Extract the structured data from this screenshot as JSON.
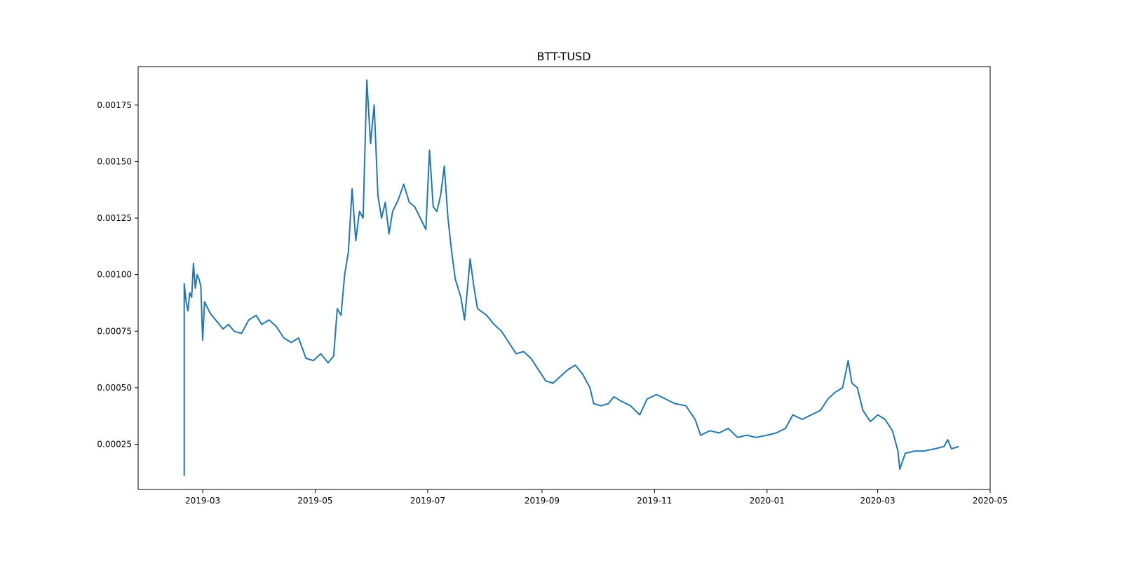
{
  "chart_data": {
    "type": "line",
    "title": "BTT-TUSD",
    "xlabel": "",
    "ylabel": "",
    "x_axis": "date",
    "xlim": [
      "2019-01-25",
      "2020-05-01"
    ],
    "ylim": [
      5e-05,
      0.00192
    ],
    "x_ticks": [
      "2019-03-01",
      "2019-05-01",
      "2019-07-01",
      "2019-09-01",
      "2019-11-01",
      "2020-01-01",
      "2020-03-01",
      "2020-05-01"
    ],
    "x_tick_labels": [
      "2019-03",
      "2019-05",
      "2019-07",
      "2019-09",
      "2019-11",
      "2020-01",
      "2020-03",
      "2020-05"
    ],
    "y_ticks": [
      0.00025,
      0.0005,
      0.00075,
      0.001,
      0.00125,
      0.0015,
      0.00175
    ],
    "y_tick_labels": [
      "0.00025",
      "0.00050",
      "0.00075",
      "0.00100",
      "0.00125",
      "0.00150",
      "0.00175"
    ],
    "grid": false,
    "legend": "none",
    "series": [
      {
        "color": "#1f77b4",
        "points": [
          [
            "2019-02-19",
            0.00011
          ],
          [
            "2019-02-19",
            0.00096
          ],
          [
            "2019-02-20",
            0.00088
          ],
          [
            "2019-02-21",
            0.00084
          ],
          [
            "2019-02-22",
            0.00092
          ],
          [
            "2019-02-23",
            0.0009
          ],
          [
            "2019-02-24",
            0.00105
          ],
          [
            "2019-02-25",
            0.00094
          ],
          [
            "2019-02-26",
            0.001
          ],
          [
            "2019-02-27",
            0.00098
          ],
          [
            "2019-02-28",
            0.00095
          ],
          [
            "2019-03-01",
            0.00071
          ],
          [
            "2019-03-02",
            0.00088
          ],
          [
            "2019-03-05",
            0.00083
          ],
          [
            "2019-03-08",
            0.0008
          ],
          [
            "2019-03-12",
            0.00076
          ],
          [
            "2019-03-15",
            0.00078
          ],
          [
            "2019-03-18",
            0.00075
          ],
          [
            "2019-03-22",
            0.00074
          ],
          [
            "2019-03-26",
            0.0008
          ],
          [
            "2019-03-30",
            0.00082
          ],
          [
            "2019-04-02",
            0.00078
          ],
          [
            "2019-04-06",
            0.0008
          ],
          [
            "2019-04-10",
            0.00077
          ],
          [
            "2019-04-14",
            0.00072
          ],
          [
            "2019-04-18",
            0.0007
          ],
          [
            "2019-04-22",
            0.00072
          ],
          [
            "2019-04-26",
            0.00063
          ],
          [
            "2019-04-30",
            0.00062
          ],
          [
            "2019-05-04",
            0.00065
          ],
          [
            "2019-05-08",
            0.00061
          ],
          [
            "2019-05-11",
            0.00064
          ],
          [
            "2019-05-13",
            0.00085
          ],
          [
            "2019-05-15",
            0.00082
          ],
          [
            "2019-05-17",
            0.001
          ],
          [
            "2019-05-19",
            0.0011
          ],
          [
            "2019-05-21",
            0.00138
          ],
          [
            "2019-05-23",
            0.00115
          ],
          [
            "2019-05-25",
            0.00128
          ],
          [
            "2019-05-27",
            0.00125
          ],
          [
            "2019-05-29",
            0.00186
          ],
          [
            "2019-05-31",
            0.00158
          ],
          [
            "2019-06-02",
            0.00175
          ],
          [
            "2019-06-04",
            0.00135
          ],
          [
            "2019-06-06",
            0.00125
          ],
          [
            "2019-06-08",
            0.00132
          ],
          [
            "2019-06-10",
            0.00118
          ],
          [
            "2019-06-12",
            0.00128
          ],
          [
            "2019-06-15",
            0.00133
          ],
          [
            "2019-06-18",
            0.0014
          ],
          [
            "2019-06-21",
            0.00132
          ],
          [
            "2019-06-24",
            0.0013
          ],
          [
            "2019-06-27",
            0.00125
          ],
          [
            "2019-06-30",
            0.0012
          ],
          [
            "2019-07-02",
            0.00155
          ],
          [
            "2019-07-04",
            0.0013
          ],
          [
            "2019-07-06",
            0.00128
          ],
          [
            "2019-07-08",
            0.00135
          ],
          [
            "2019-07-10",
            0.00148
          ],
          [
            "2019-07-12",
            0.00125
          ],
          [
            "2019-07-14",
            0.0011
          ],
          [
            "2019-07-16",
            0.00098
          ],
          [
            "2019-07-19",
            0.0009
          ],
          [
            "2019-07-21",
            0.0008
          ],
          [
            "2019-07-24",
            0.00107
          ],
          [
            "2019-07-26",
            0.00095
          ],
          [
            "2019-07-28",
            0.00085
          ],
          [
            "2019-08-02",
            0.00082
          ],
          [
            "2019-08-06",
            0.00078
          ],
          [
            "2019-08-10",
            0.00075
          ],
          [
            "2019-08-14",
            0.0007
          ],
          [
            "2019-08-18",
            0.00065
          ],
          [
            "2019-08-22",
            0.00066
          ],
          [
            "2019-08-26",
            0.00063
          ],
          [
            "2019-08-30",
            0.00058
          ],
          [
            "2019-09-03",
            0.00053
          ],
          [
            "2019-09-07",
            0.00052
          ],
          [
            "2019-09-11",
            0.00055
          ],
          [
            "2019-09-15",
            0.00058
          ],
          [
            "2019-09-19",
            0.0006
          ],
          [
            "2019-09-23",
            0.00056
          ],
          [
            "2019-09-27",
            0.0005
          ],
          [
            "2019-09-29",
            0.00043
          ],
          [
            "2019-10-03",
            0.00042
          ],
          [
            "2019-10-07",
            0.00043
          ],
          [
            "2019-10-10",
            0.00046
          ],
          [
            "2019-10-14",
            0.00044
          ],
          [
            "2019-10-19",
            0.00042
          ],
          [
            "2019-10-24",
            0.00038
          ],
          [
            "2019-10-28",
            0.00045
          ],
          [
            "2019-11-02",
            0.00047
          ],
          [
            "2019-11-07",
            0.00045
          ],
          [
            "2019-11-12",
            0.00043
          ],
          [
            "2019-11-18",
            0.00042
          ],
          [
            "2019-11-23",
            0.00036
          ],
          [
            "2019-11-26",
            0.00029
          ],
          [
            "2019-12-01",
            0.00031
          ],
          [
            "2019-12-06",
            0.0003
          ],
          [
            "2019-12-11",
            0.00032
          ],
          [
            "2019-12-16",
            0.00028
          ],
          [
            "2019-12-21",
            0.00029
          ],
          [
            "2019-12-26",
            0.00028
          ],
          [
            "2020-01-01",
            0.00029
          ],
          [
            "2020-01-06",
            0.0003
          ],
          [
            "2020-01-11",
            0.00032
          ],
          [
            "2020-01-15",
            0.00038
          ],
          [
            "2020-01-20",
            0.00036
          ],
          [
            "2020-01-25",
            0.00038
          ],
          [
            "2020-01-30",
            0.0004
          ],
          [
            "2020-02-03",
            0.00045
          ],
          [
            "2020-02-07",
            0.00048
          ],
          [
            "2020-02-11",
            0.0005
          ],
          [
            "2020-02-14",
            0.00062
          ],
          [
            "2020-02-16",
            0.00052
          ],
          [
            "2020-02-19",
            0.0005
          ],
          [
            "2020-02-22",
            0.0004
          ],
          [
            "2020-02-26",
            0.00035
          ],
          [
            "2020-03-01",
            0.00038
          ],
          [
            "2020-03-05",
            0.00036
          ],
          [
            "2020-03-09",
            0.00031
          ],
          [
            "2020-03-12",
            0.00022
          ],
          [
            "2020-03-13",
            0.00014
          ],
          [
            "2020-03-16",
            0.00021
          ],
          [
            "2020-03-21",
            0.00022
          ],
          [
            "2020-03-26",
            0.00022
          ],
          [
            "2020-04-01",
            0.00023
          ],
          [
            "2020-04-06",
            0.00024
          ],
          [
            "2020-04-08",
            0.00027
          ],
          [
            "2020-04-10",
            0.00023
          ],
          [
            "2020-04-14",
            0.00024
          ]
        ]
      }
    ]
  }
}
